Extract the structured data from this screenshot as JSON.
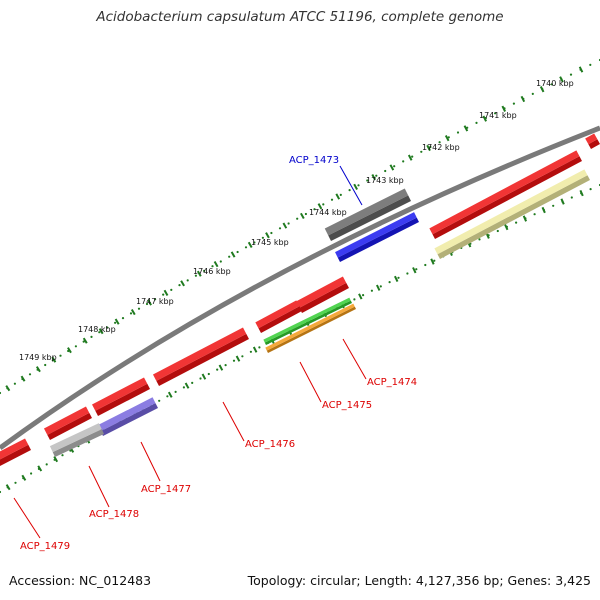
{
  "title": "Acidobacterium capsulatum ATCC 51196, complete genome",
  "footer": {
    "accession": "Accession: NC_012483",
    "topology": "Topology: circular; Length: 4,127,356 bp; Genes: 3,425"
  },
  "colors": {
    "backbone": "#7a7a7a",
    "scale": "#1f7a1f",
    "label_red": "#dd0000",
    "label_blue": "#0000cc"
  },
  "scale_labels": [
    {
      "label": "1740 kbp"
    },
    {
      "label": "1741 kbp"
    },
    {
      "label": "1742 kbp"
    },
    {
      "label": "1743 kbp"
    },
    {
      "label": "1744 kbp"
    },
    {
      "label": "1745 kbp"
    },
    {
      "label": "1746 kbp"
    },
    {
      "label": "1747 kbp"
    },
    {
      "label": "1748 kbp"
    },
    {
      "label": "1749 kbp"
    }
  ],
  "genes": [
    {
      "name": "ACP_1473",
      "strand": "forward",
      "color": "#666666"
    },
    {
      "name": "ACP_1473-cds",
      "strand": "forward",
      "color": "#1a1aee"
    },
    {
      "name": "ACP_1474",
      "strand": "forward",
      "color": "#ee1111"
    },
    {
      "name": "ACP_1474-cds",
      "strand": "forward",
      "color": "#f39a1a"
    },
    {
      "name": "ACP_1475",
      "strand": "forward",
      "color": "#ee1111"
    },
    {
      "name": "ACP_1475-cds",
      "strand": "forward",
      "color": "#33cc33"
    },
    {
      "name": "ACP_1476",
      "strand": "forward",
      "color": "#ee1111"
    },
    {
      "name": "ACP_1477",
      "strand": "forward",
      "color": "#ee1111"
    },
    {
      "name": "ACP_1477-cds",
      "strand": "forward",
      "color": "#7766dd"
    },
    {
      "name": "ACP_1478",
      "strand": "forward",
      "color": "#ee1111"
    },
    {
      "name": "ACP_1478-cds",
      "strand": "forward",
      "color": "#bbbbbb"
    },
    {
      "name": "ACP_1479",
      "strand": "forward",
      "color": "#ee1111"
    },
    {
      "name": "upstream-gene",
      "strand": "forward",
      "color": "#ee1111"
    },
    {
      "name": "upstream-gene-cds",
      "strand": "forward",
      "color": "#eeeaa0"
    },
    {
      "name": "edge-gene",
      "strand": "forward",
      "color": "#ee1111"
    }
  ],
  "gene_labels": [
    {
      "label": "ACP_1473",
      "color": "#0000cc"
    },
    {
      "label": "ACP_1474",
      "color": "#dd0000"
    },
    {
      "label": "ACP_1475",
      "color": "#dd0000"
    },
    {
      "label": "ACP_1476",
      "color": "#dd0000"
    },
    {
      "label": "ACP_1477",
      "color": "#dd0000"
    },
    {
      "label": "ACP_1478",
      "color": "#dd0000"
    },
    {
      "label": "ACP_1479",
      "color": "#dd0000"
    }
  ]
}
